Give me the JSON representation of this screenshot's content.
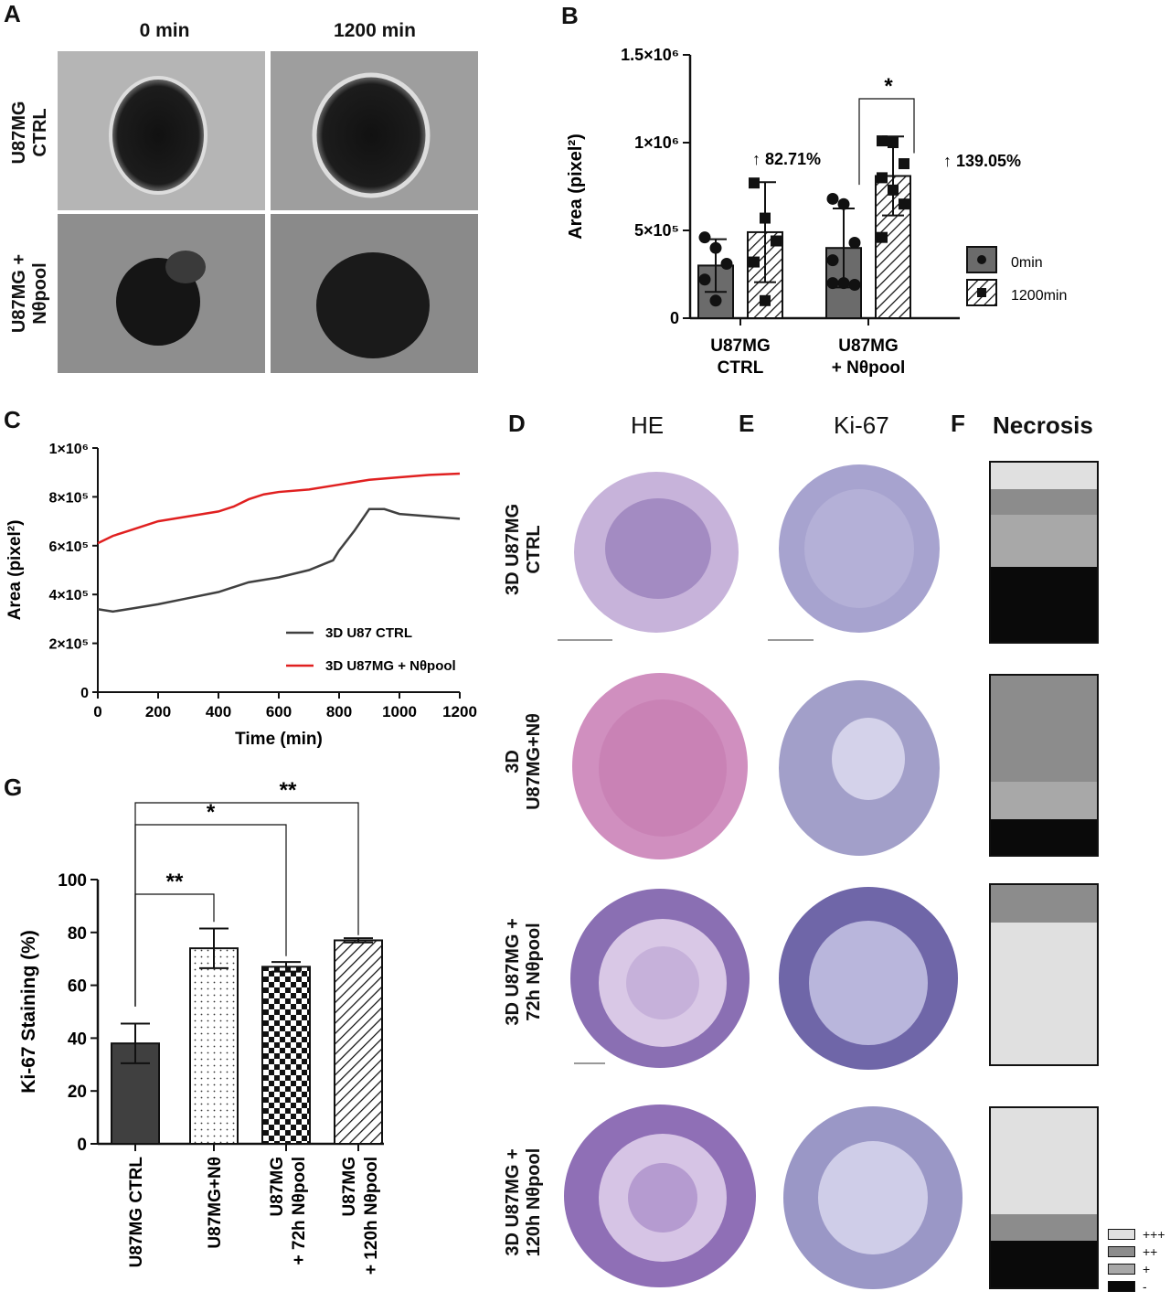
{
  "panels": {
    "a": {
      "letter": "A",
      "col_labels": [
        "0 min",
        "1200 min"
      ],
      "row_labels": [
        "U87MG\nCTRL",
        "U87MG +\nNθpool"
      ]
    },
    "b": {
      "letter": "B"
    },
    "c": {
      "letter": "C"
    },
    "d": {
      "letter": "D",
      "title": "HE"
    },
    "e": {
      "letter": "E",
      "title": "Ki-67"
    },
    "f": {
      "letter": "F",
      "title": "Necrosis"
    },
    "g": {
      "letter": "G"
    }
  },
  "histology_rows": [
    "3D U87MG\nCTRL",
    "3D\nU87MG+Nθ",
    "3D U87MG +\n72h Nθpool",
    "3D U87MG +\n120h Nθpool"
  ],
  "necrosis_legend": [
    {
      "label": "+++",
      "color": "#e0e0e0"
    },
    {
      "label": "++",
      "color": "#8c8c8c"
    },
    {
      "label": "+",
      "color": "#a8a8a8"
    },
    {
      "label": "-",
      "color": "#0a0a0a"
    }
  ],
  "necrosis_bars": [
    [
      {
        "level": "+++",
        "frac": 0.15
      },
      {
        "level": "++",
        "frac": 0.14
      },
      {
        "level": "+",
        "frac": 0.29
      },
      {
        "level": "-",
        "frac": 0.42
      }
    ],
    [
      {
        "level": "++",
        "frac": 0.59
      },
      {
        "level": "+",
        "frac": 0.21
      },
      {
        "level": "-",
        "frac": 0.2
      }
    ],
    [
      {
        "level": "++",
        "frac": 0.21
      },
      {
        "level": "+++",
        "frac": 0.79
      }
    ],
    [
      {
        "level": "+++",
        "frac": 0.59
      },
      {
        "level": "++",
        "frac": 0.15
      },
      {
        "level": "-",
        "frac": 0.26
      }
    ]
  ],
  "chart_data": [
    {
      "id": "B",
      "type": "bar",
      "ylabel": "Area (pixel²)",
      "yticks": [
        "0",
        "5×10⁵",
        "1×10⁶",
        "1.5×10⁶"
      ],
      "ylim": [
        0,
        1500000
      ],
      "categories": [
        "U87MG\nCTRL",
        "U87MG\n+ Nθpool"
      ],
      "series": [
        {
          "name": "0min",
          "values": [
            300000,
            400000
          ],
          "errors": [
            150000,
            225000
          ],
          "points": [
            [
              460000,
              400000,
              310000,
              220000,
              100000
            ],
            [
              680000,
              650000,
              430000,
              330000,
              200000,
              190000,
              200000
            ]
          ]
        },
        {
          "name": "1200min",
          "values": [
            490000,
            810000
          ],
          "errors": [
            285000,
            225000
          ],
          "points": [
            [
              770000,
              570000,
              440000,
              320000,
              100000
            ],
            [
              1010000,
              1000000,
              880000,
              800000,
              730000,
              650000,
              460000
            ]
          ]
        }
      ],
      "annotations": [
        "↑ 82.71%",
        "↑ 139.05%"
      ],
      "significance": "*"
    },
    {
      "id": "C",
      "type": "line",
      "xlabel": "Time (min)",
      "ylabel": "Area (pixel²)",
      "xticks": [
        "0",
        "200",
        "400",
        "600",
        "800",
        "1000",
        "1200"
      ],
      "yticks": [
        "0",
        "2×10⁵",
        "4×10⁵",
        "6×10⁵",
        "8×10⁵",
        "1×10⁶"
      ],
      "xlim": [
        0,
        1200
      ],
      "ylim": [
        0,
        1000000
      ],
      "series": [
        {
          "name": "3D U87 CTRL",
          "color": "#404040",
          "x": [
            0,
            50,
            100,
            200,
            300,
            400,
            500,
            600,
            700,
            780,
            800,
            850,
            900,
            950,
            1000,
            1100,
            1200
          ],
          "y": [
            340000,
            330000,
            340000,
            360000,
            385000,
            410000,
            450000,
            470000,
            500000,
            540000,
            580000,
            660000,
            750000,
            750000,
            730000,
            720000,
            710000
          ]
        },
        {
          "name": "3D U87MG + Nθpool",
          "color": "#e02020",
          "x": [
            0,
            50,
            100,
            200,
            300,
            400,
            450,
            500,
            550,
            600,
            700,
            800,
            900,
            1000,
            1100,
            1200
          ],
          "y": [
            610000,
            640000,
            660000,
            700000,
            720000,
            740000,
            760000,
            790000,
            810000,
            820000,
            830000,
            850000,
            870000,
            880000,
            890000,
            895000
          ]
        }
      ]
    },
    {
      "id": "G",
      "type": "bar",
      "ylabel": "Ki-67 Staining (%)",
      "yticks": [
        "0",
        "20",
        "40",
        "60",
        "80",
        "100"
      ],
      "ylim": [
        0,
        100
      ],
      "categories": [
        "U87MG CTRL",
        "U87MG+Nθ",
        "U87MG\n+ 72h Nθpool",
        "U87MG\n+ 120h Nθpool"
      ],
      "values": [
        38,
        74,
        67,
        77
      ],
      "errors": [
        7.5,
        7.5,
        1.8,
        0.8
      ],
      "significance": [
        "**",
        "*",
        "**"
      ]
    }
  ]
}
